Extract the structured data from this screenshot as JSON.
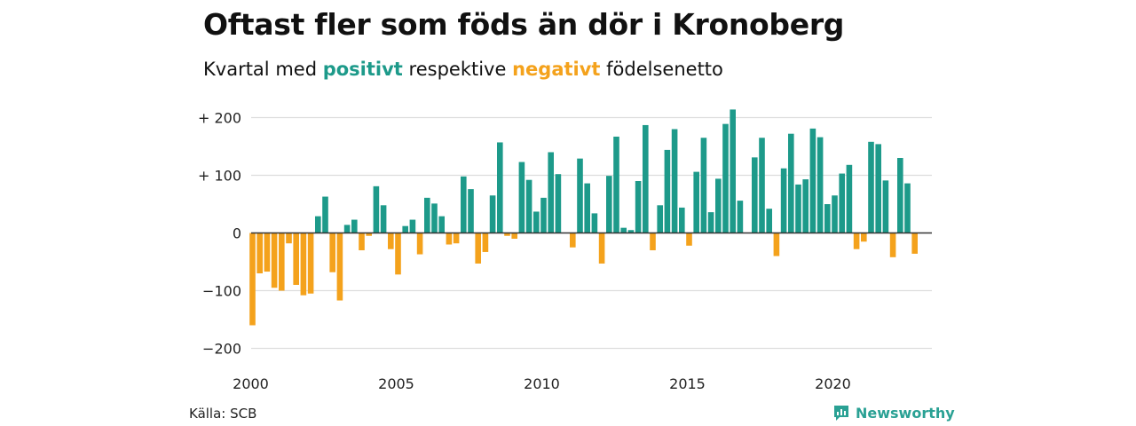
{
  "header": {
    "title": "Oftast fler som föds än dör i Kronoberg",
    "subtitle_prefix": "Kvartal med",
    "subtitle_pos": "positivt",
    "subtitle_mid": "respektive",
    "subtitle_neg": "negativt",
    "subtitle_suffix": "födelsenetto"
  },
  "footer": {
    "source": "Källa: SCB",
    "brand": "Newsworthy"
  },
  "colors": {
    "positive": "#1d9a8a",
    "negative": "#f4a21c",
    "grid": "#dddddd",
    "zero": "#333333"
  },
  "chart_data": {
    "type": "bar",
    "title": "Oftast fler som föds än dör i Kronoberg",
    "subtitle": "Kvartal med positivt respektive negativt födelsenetto",
    "x_start": 2000,
    "x_step": 0.25,
    "x_ticks": [
      2000,
      2005,
      2010,
      2015,
      2020
    ],
    "x_tick_labels": [
      "2000",
      "2005",
      "2010",
      "2015",
      "2020"
    ],
    "y_ticks": [
      200,
      100,
      0,
      -100,
      -200
    ],
    "y_tick_labels": [
      "+ 200",
      "+ 100",
      "0",
      "−100",
      "−200"
    ],
    "ylim": [
      -200,
      210
    ],
    "grid": true,
    "values": [
      -160,
      -70,
      -67,
      -95,
      -100,
      -18,
      -90,
      -108,
      -105,
      29,
      63,
      -68,
      -117,
      14,
      23,
      -30,
      -5,
      81,
      48,
      -28,
      -72,
      12,
      23,
      -37,
      61,
      51,
      29,
      -20,
      -18,
      98,
      76,
      -53,
      -33,
      65,
      157,
      -5,
      -10,
      123,
      92,
      37,
      61,
      140,
      102,
      0,
      -25,
      129,
      86,
      34,
      -53,
      99,
      167,
      9,
      5,
      90,
      187,
      -30,
      48,
      144,
      180,
      44,
      -22,
      106,
      165,
      36,
      94,
      189,
      214,
      56,
      0,
      131,
      165,
      42,
      -40,
      112,
      172,
      84,
      93,
      181,
      166,
      50,
      65,
      103,
      118,
      -28,
      -15,
      158,
      154,
      91,
      -42,
      130,
      86,
      -36
    ]
  }
}
